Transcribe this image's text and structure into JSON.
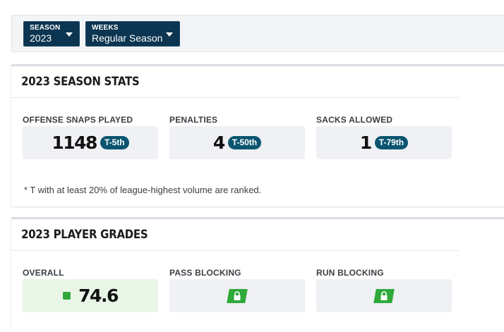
{
  "filters": {
    "season": {
      "label": "SEASON",
      "value": "2023"
    },
    "weeks": {
      "label": "WEEKS",
      "value": "Regular Season"
    }
  },
  "season_stats": {
    "title": "2023 SEASON STATS",
    "items": [
      {
        "label": "OFFENSE SNAPS PLAYED",
        "value": "1148",
        "rank": "T-5th"
      },
      {
        "label": "PENALTIES",
        "value": "4",
        "rank": "T-50th"
      },
      {
        "label": "SACKS ALLOWED",
        "value": "1",
        "rank": "T-79th"
      }
    ],
    "footnote": "* T with at least 20% of league-highest volume are ranked."
  },
  "player_grades": {
    "title": "2023 PLAYER GRADES",
    "items": [
      {
        "label": "OVERALL",
        "value": "74.6",
        "locked": false
      },
      {
        "label": "PASS BLOCKING",
        "locked": true,
        "icon": "lock-icon"
      },
      {
        "label": "RUN BLOCKING",
        "locked": true,
        "icon": "lock-icon"
      }
    ]
  },
  "colors": {
    "dropdown_bg": "#0b3550",
    "rank_badge": "#0b5570",
    "grade_green": "#2ea93a",
    "grade_box_bg": "#e9f5e6"
  }
}
